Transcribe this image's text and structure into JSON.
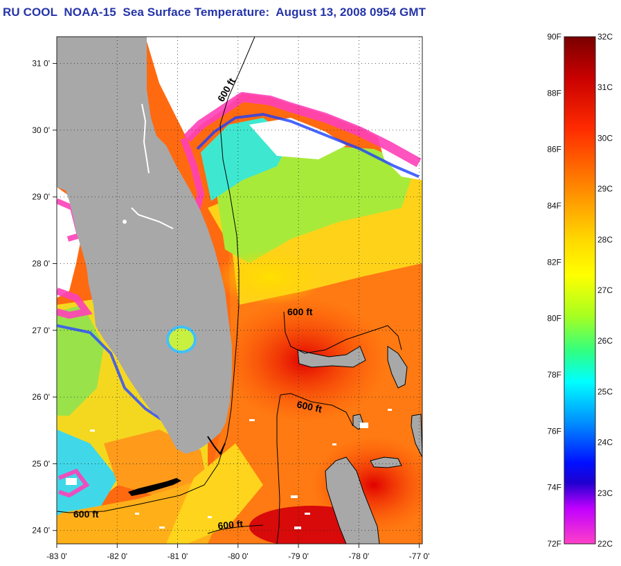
{
  "title": "RU COOL  NOAA-15  Sea Surface Temperature:  August 13, 2008 0954 GMT",
  "map": {
    "lat_ticks": [
      {
        "value": 31,
        "label": "31 0'"
      },
      {
        "value": 30,
        "label": "30 0'"
      },
      {
        "value": 29,
        "label": "29 0'"
      },
      {
        "value": 28,
        "label": "28 0'"
      },
      {
        "value": 27,
        "label": "27 0'"
      },
      {
        "value": 26,
        "label": "26 0'"
      },
      {
        "value": 25,
        "label": "25 0'"
      },
      {
        "value": 24,
        "label": "24 0'"
      }
    ],
    "lon_ticks": [
      {
        "value": -83,
        "label": "-83 0'"
      },
      {
        "value": -82,
        "label": "-82 0'"
      },
      {
        "value": -81,
        "label": "-81 0'"
      },
      {
        "value": -80,
        "label": "-80 0'"
      },
      {
        "value": -79,
        "label": "-79 0'"
      },
      {
        "value": -78,
        "label": "-78 0'"
      },
      {
        "value": -77,
        "label": "-77 0'"
      }
    ],
    "lat_range": [
      23.8,
      31.4
    ],
    "lon_range": [
      -83,
      -76.95
    ],
    "contour_labels": [
      "600 ft",
      "600 ft",
      "600 ft",
      "600 ft",
      "600 ft"
    ],
    "colors": {
      "land": "#a8a8a8",
      "cloud": "#ffffff",
      "contour": "#000000"
    }
  },
  "colorbar": {
    "fahrenheit_labels": [
      "90F",
      "88F",
      "86F",
      "84F",
      "82F",
      "80F",
      "78F",
      "76F",
      "74F",
      "72F"
    ],
    "celsius_labels": [
      "32C",
      "31C",
      "30C",
      "29C",
      "28C",
      "27C",
      "26C",
      "25C",
      "24C",
      "23C",
      "22C"
    ],
    "range_c": [
      22,
      32
    ],
    "range_f": [
      72,
      90
    ]
  }
}
